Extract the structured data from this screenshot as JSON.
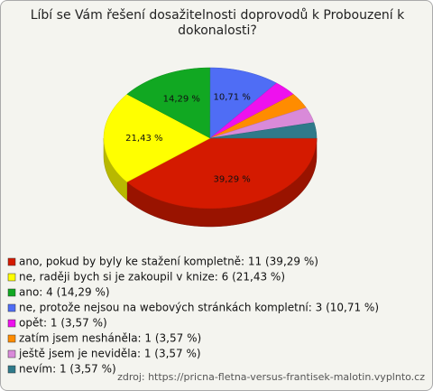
{
  "chart_data": {
    "type": "pie",
    "title": "Líbí se Vám řešení dosažitelnosti doprovodů k Probouzení k dokonalosti?",
    "categories": [
      "ano, pokud by byly ke stažení kompletně: 11 (39,29 %)",
      "ne, raději bych si je zakoupil v knize: 6 (21,43 %)",
      "ano: 4 (14,29 %)",
      "ne, protože nejsou na webových stránkách kompletní: 3 (10,71 %)",
      "opět: 1 (3,57 %)",
      "zatím jsem nesháněla: 1 (3,57 %)",
      "ještě jsem je neviděla: 1 (3,57 %)",
      "nevím: 1 (3,57 %)"
    ],
    "values": [
      39.29,
      21.43,
      14.29,
      10.71,
      3.57,
      3.57,
      3.57,
      3.57
    ],
    "value_labels": [
      "39,29 %",
      "21,43 %",
      "14,29 %",
      "10,71 %",
      null,
      null,
      null,
      null
    ],
    "colors": [
      "#d41a00",
      "#ffff00",
      "#11a822",
      "#4f6df5",
      "#ee11ee",
      "#ff8c00",
      "#d98ad9",
      "#2f7a8a"
    ],
    "source": "zdroj: https://pricna-fletna-versus-frantisek-malotin.vyplnto.cz"
  }
}
